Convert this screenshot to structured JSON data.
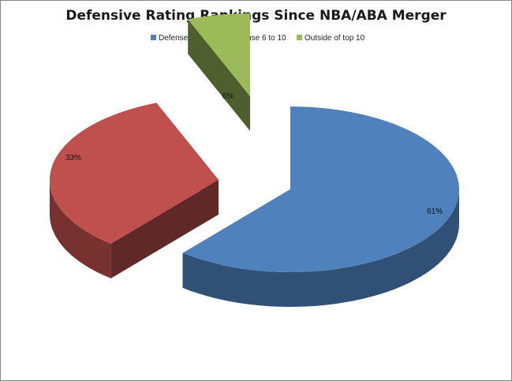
{
  "chart_data": {
    "type": "pie",
    "title": "Defensive Rating Rankings Since NBA/ABA Merger",
    "categories": [
      "Defense Top 5",
      "Defense 6 to 10",
      "Outside of top 10"
    ],
    "values": [
      61,
      33,
      6
    ],
    "labels": [
      "61%",
      "33%",
      "6%"
    ],
    "colors": [
      "#4F81BD",
      "#C0504D",
      "#9BBB59"
    ],
    "legend": "top",
    "three_d": true,
    "exploded": true
  }
}
